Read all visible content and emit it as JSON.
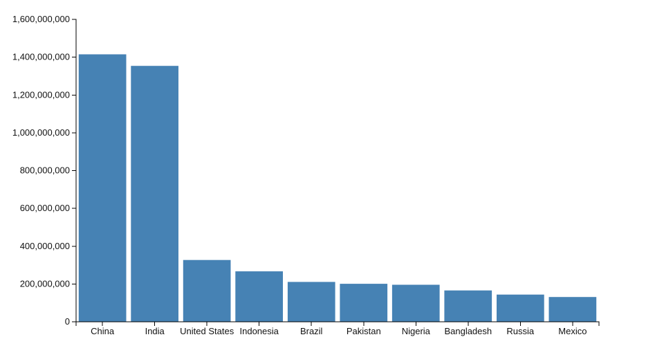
{
  "chart_data": {
    "type": "bar",
    "title": "",
    "xlabel": "",
    "ylabel": "",
    "categories": [
      "China",
      "India",
      "United States",
      "Indonesia",
      "Brazil",
      "Pakistan",
      "Nigeria",
      "Bangladesh",
      "Russia",
      "Mexico"
    ],
    "values": [
      1415000000,
      1354000000,
      327000000,
      267000000,
      211000000,
      201000000,
      196000000,
      166000000,
      144000000,
      131000000
    ],
    "ylim": [
      0,
      1600000000
    ],
    "y_tick_interval": 200000000,
    "y_tick_labels": [
      "0",
      "200,000,000",
      "400,000,000",
      "600,000,000",
      "800,000,000",
      "1,000,000,000",
      "1,200,000,000",
      "1,400,000,000",
      "1,600,000,000"
    ],
    "bar_color": "#4682b4",
    "axis_color": "#000000",
    "text_color": "#111111",
    "grid": false,
    "legend": false
  }
}
